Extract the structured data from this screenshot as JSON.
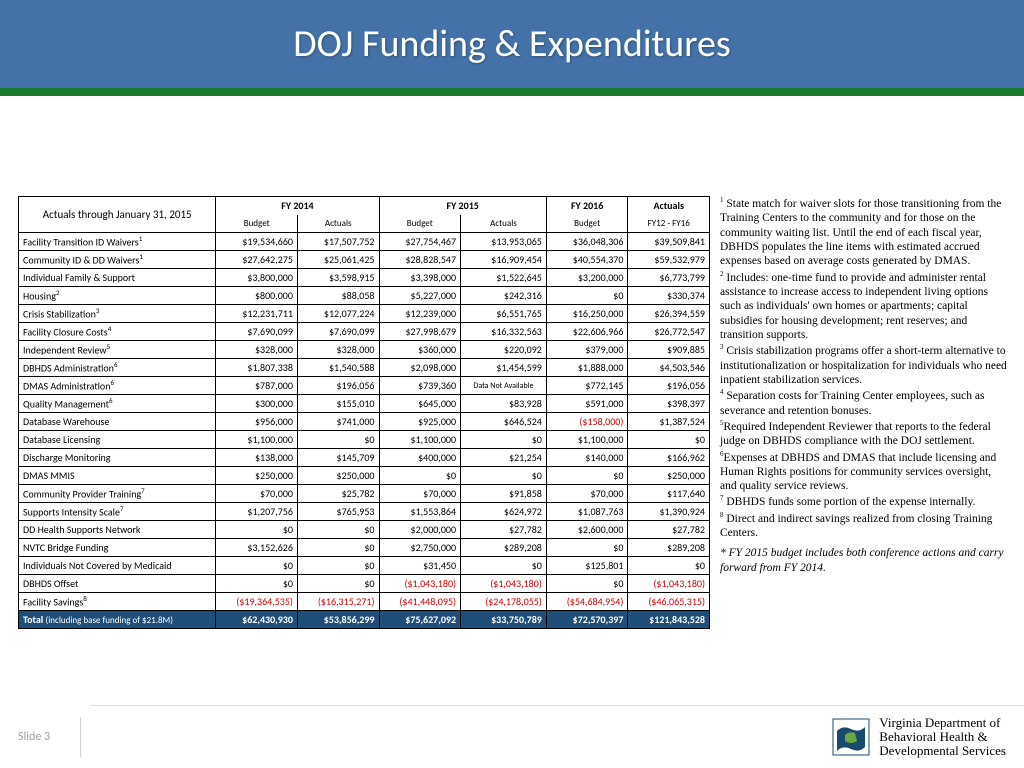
{
  "title": "DOJ Funding & Expenditures",
  "colors": {
    "header_bg": "#4472a8",
    "green_bar": "#1a7a2e",
    "total_bg": "#1f4e79",
    "negative": "#d00000"
  },
  "table": {
    "caption": "Actuals through January 31, 2015",
    "header_groups": [
      "FY 2014",
      "FY 2015",
      "FY 2016",
      "Actuals"
    ],
    "sub_headers": [
      "Budget",
      "Actuals",
      "Budget",
      "Actuals",
      "Budget",
      "FY12 - FY16"
    ],
    "rows": [
      {
        "label": "Facility Transition ID Waivers",
        "sup": "1",
        "cells": [
          "$19,534,660",
          "$17,507,752",
          "$27,754,467",
          "$13,953,065",
          "$36,048,306",
          "$39,509,841"
        ]
      },
      {
        "label": "Community ID & DD Waivers",
        "sup": "1",
        "cells": [
          "$27,642,275",
          "$25,061,425",
          "$28,828,547",
          "$16,909,454",
          "$40,554,370",
          "$59,532,979"
        ]
      },
      {
        "label": "Individual Family & Support",
        "cells": [
          "$3,800,000",
          "$3,598,915",
          "$3,398,000",
          "$1,522,645",
          "$3,200,000",
          "$6,773,799"
        ]
      },
      {
        "label": "Housing",
        "sup": "2",
        "cells": [
          "$800,000",
          "$88,058",
          "$5,227,000",
          "$242,316",
          "$0",
          "$330,374"
        ]
      },
      {
        "label": "Crisis Stabilization",
        "sup": "3",
        "cells": [
          "$12,231,711",
          "$12,077,224",
          "$12,239,000",
          "$6,551,765",
          "$16,250,000",
          "$26,394,559"
        ]
      },
      {
        "label": "Facility Closure Costs",
        "sup": "4",
        "cells": [
          "$7,690,099",
          "$7,690,099",
          "$27,998,679",
          "$16,332,563",
          "$22,606,966",
          "$26,772,547"
        ]
      },
      {
        "label": "Independent Review",
        "sup": "5",
        "cells": [
          "$328,000",
          "$328,000",
          "$360,000",
          "$220,092",
          "$379,000",
          "$909,885"
        ]
      },
      {
        "label": "DBHDS Administration",
        "sup": "6",
        "cells": [
          "$1,807,338",
          "$1,540,588",
          "$2,098,000",
          "$1,454,599",
          "$1,888,000",
          "$4,503,546"
        ]
      },
      {
        "label": "DMAS Administration",
        "sup": "6",
        "cells": [
          "$787,000",
          "$196,056",
          "$739,360",
          "Data Not Available",
          "$772,145",
          "$196,056"
        ],
        "na_idx": 3
      },
      {
        "label": "Quality Management",
        "sup": "6",
        "cells": [
          "$300,000",
          "$155,010",
          "$645,000",
          "$83,928",
          "$591,000",
          "$398,397"
        ]
      },
      {
        "label": "Database Warehouse",
        "cells": [
          "$956,000",
          "$741,000",
          "$925,000",
          "$646,524",
          "($158,000)",
          "$1,387,524"
        ],
        "neg": [
          4
        ]
      },
      {
        "label": "Database Licensing",
        "cells": [
          "$1,100,000",
          "$0",
          "$1,100,000",
          "$0",
          "$1,100,000",
          "$0"
        ]
      },
      {
        "label": "Discharge Monitoring",
        "cells": [
          "$138,000",
          "$145,709",
          "$400,000",
          "$21,254",
          "$140,000",
          "$166,962"
        ]
      },
      {
        "label": "DMAS MMIS",
        "cells": [
          "$250,000",
          "$250,000",
          "$0",
          "$0",
          "$0",
          "$250,000"
        ]
      },
      {
        "label": "Community Provider Training",
        "sup": "7",
        "cells": [
          "$70,000",
          "$25,782",
          "$70,000",
          "$91,858",
          "$70,000",
          "$117,640"
        ]
      },
      {
        "label": "Supports Intensity Scale",
        "sup": "7",
        "cells": [
          "$1,207,756",
          "$765,953",
          "$1,553,864",
          "$624,972",
          "$1,087,763",
          "$1,390,924"
        ]
      },
      {
        "label": "DD Health Supports Network",
        "cells": [
          "$0",
          "$0",
          "$2,000,000",
          "$27,782",
          "$2,600,000",
          "$27,782"
        ]
      },
      {
        "label": "NVTC Bridge Funding",
        "cells": [
          "$3,152,626",
          "$0",
          "$2,750,000",
          "$289,208",
          "$0",
          "$289,208"
        ]
      },
      {
        "label": "Individuals Not Covered by Medicaid",
        "cells": [
          "$0",
          "$0",
          "$31,450",
          "$0",
          "$125,801",
          "$0"
        ]
      },
      {
        "label": "DBHDS Offset",
        "cells": [
          "$0",
          "$0",
          "($1,043,180)",
          "($1,043,180)",
          "$0",
          "($1,043,180)"
        ],
        "neg": [
          2,
          3,
          5
        ]
      },
      {
        "label": "Facility Savings",
        "sup": "8",
        "cells": [
          "($19,364,535)",
          "($16,315,271)",
          "($41,448,095)",
          "($24,178,055)",
          "($54,684,954)",
          "($46,065,315)"
        ],
        "neg": [
          0,
          1,
          2,
          3,
          4,
          5
        ]
      }
    ],
    "total": {
      "label": "Total (including base funding of $21.8M)",
      "cells": [
        "$62,430,930",
        "$53,856,299",
        "$75,627,092",
        "$33,750,789",
        "$72,570,397",
        "$121,843,528"
      ]
    }
  },
  "notes": [
    {
      "sup": "1",
      "text": " State match for waiver slots for those transitioning from the Training Centers to the community and for those on the community waiting list. Until the end of each fiscal year, DBHDS populates the line items with estimated accrued expenses based on average costs generated by DMAS."
    },
    {
      "sup": "2",
      "text": " Includes: one-time fund to provide and administer rental assistance to increase access to independent living options such as individuals' own homes or apartments; capital subsidies for housing development; rent reserves; and transition supports."
    },
    {
      "sup": "3",
      "text": " Crisis stabilization programs offer a short-term alternative to institutionalization or hospitalization for individuals who need inpatient stabilization services."
    },
    {
      "sup": "4",
      "text": " Separation costs for Training Center employees, such as severance and retention bonuses."
    },
    {
      "sup": "5",
      "text": "Required Independent Reviewer that reports to the federal judge on DBHDS compliance with the DOJ settlement."
    },
    {
      "sup": "6",
      "text": "Expenses at DBHDS and DMAS that include licensing and Human Rights positions for community services oversight,  and quality service reviews."
    },
    {
      "sup": "7",
      "text": " DBHDS funds some portion of the expense internally."
    },
    {
      "sup": "8",
      "text": " Direct and indirect savings realized from closing Training Centers."
    }
  ],
  "note_italic": "* FY 2015 budget includes both conference actions and carry forward from FY 2014.",
  "footer": {
    "slide": "Slide 3",
    "logo_text": "Virginia Department of\nBehavioral Health &\nDevelopmental Services"
  }
}
